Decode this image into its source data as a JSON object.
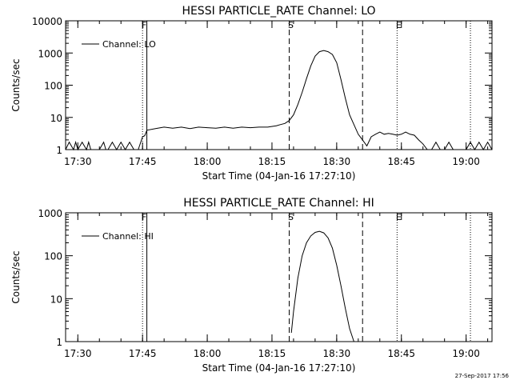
{
  "footer_date": "27-Sep-2017 17:56",
  "chart_data": [
    {
      "type": "line",
      "title": "HESSI PARTICLE_RATE Channel: LO",
      "xlabel": "Start Time (04-Jan-16 17:27:10)",
      "ylabel": "Counts/sec",
      "y_scale": "log",
      "ylim": [
        1,
        10000
      ],
      "xlim": [
        "17:27:10",
        "19:06"
      ],
      "x_ticks": [
        "17:30",
        "17:45",
        "18:00",
        "18:15",
        "18:30",
        "18:45",
        "19:00"
      ],
      "y_ticks": [
        "1",
        "10",
        "100",
        "1000",
        "10000"
      ],
      "legend": {
        "label": "Channel: LO",
        "position": "top-left"
      },
      "markers": [
        {
          "label": "F",
          "time": "17:45",
          "style": "dotted"
        },
        {
          "label": "",
          "time": "17:46",
          "style": "solid"
        },
        {
          "label": "S",
          "time": "18:19",
          "style": "dashed"
        },
        {
          "label": "",
          "time": "18:36",
          "style": "dashed"
        },
        {
          "label": "E",
          "time": "18:44",
          "style": "dotted"
        },
        {
          "label": "",
          "time": "19:01",
          "style": "dotted"
        }
      ],
      "series": [
        {
          "x": [
            "17:27:10",
            "17:28",
            "17:29",
            "17:29:30",
            "17:30",
            "17:31",
            "17:32",
            "17:32:30",
            "17:33",
            "17:34",
            "17:35",
            "17:36",
            "17:36:30",
            "17:37",
            "17:38",
            "17:39",
            "17:40",
            "17:41",
            "17:42",
            "17:43",
            "17:44",
            "17:45",
            "17:45:30",
            "17:46",
            "17:48",
            "17:50",
            "17:52",
            "17:54",
            "17:56",
            "17:58",
            "18:00",
            "18:02",
            "18:04",
            "18:06",
            "18:08",
            "18:10",
            "18:12",
            "18:14",
            "18:16",
            "18:17",
            "18:18",
            "18:19",
            "18:20",
            "18:21",
            "18:22",
            "18:23",
            "18:24",
            "18:25",
            "18:26",
            "18:27",
            "18:28",
            "18:29",
            "18:30",
            "18:31",
            "18:32",
            "18:33",
            "18:34",
            "18:35",
            "18:36",
            "18:37",
            "18:38",
            "18:39",
            "18:40",
            "18:41",
            "18:42",
            "18:43",
            "18:44",
            "18:45",
            "18:46",
            "18:47",
            "18:48",
            "18:49",
            "18:50",
            "18:51",
            "18:52",
            "18:53",
            "18:54",
            "18:55",
            "18:56",
            "18:57",
            "18:58",
            "18:59",
            "19:00",
            "19:01",
            "19:02",
            "19:03",
            "19:04",
            "19:05",
            "19:06"
          ],
          "y": [
            1,
            1.7,
            1,
            1.7,
            1,
            1.7,
            1,
            1.7,
            1,
            1,
            1,
            1.7,
            1,
            1,
            1.7,
            1,
            1.7,
            1,
            1.7,
            1,
            1,
            2.5,
            2.7,
            4,
            4.5,
            5,
            4.6,
            5,
            4.5,
            5,
            4.8,
            4.6,
            5,
            4.6,
            5,
            4.8,
            5,
            5,
            5.5,
            6,
            6.5,
            8,
            12,
            25,
            60,
            160,
            400,
            800,
            1100,
            1200,
            1100,
            900,
            500,
            150,
            40,
            12,
            6,
            3,
            2,
            1.3,
            2.5,
            3,
            3.5,
            3,
            3.2,
            3,
            2.8,
            3,
            3.5,
            3,
            2.8,
            2,
            1.5,
            1,
            1,
            1.7,
            1,
            1,
            1.7,
            1,
            1,
            1,
            1,
            1.7,
            1,
            1.7,
            1,
            1.7,
            1
          ]
        }
      ]
    },
    {
      "type": "line",
      "title": "HESSI PARTICLE_RATE Channel: HI",
      "xlabel": "Start Time (04-Jan-16 17:27:10)",
      "ylabel": "Counts/sec",
      "y_scale": "log",
      "ylim": [
        1,
        1000
      ],
      "xlim": [
        "17:27:10",
        "19:06"
      ],
      "x_ticks": [
        "17:30",
        "17:45",
        "18:00",
        "18:15",
        "18:30",
        "18:45",
        "19:00"
      ],
      "y_ticks": [
        "1",
        "10",
        "100",
        "1000"
      ],
      "legend": {
        "label": "Channel: HI",
        "position": "top-left"
      },
      "markers": [
        {
          "label": "F",
          "time": "17:45",
          "style": "dotted"
        },
        {
          "label": "",
          "time": "17:46",
          "style": "solid"
        },
        {
          "label": "S",
          "time": "18:19",
          "style": "dashed"
        },
        {
          "label": "",
          "time": "18:36",
          "style": "dashed"
        },
        {
          "label": "E",
          "time": "18:44",
          "style": "dotted"
        },
        {
          "label": "",
          "time": "19:01",
          "style": "dotted"
        }
      ],
      "series": [
        {
          "x": [
            "18:19:30",
            "18:20",
            "18:21",
            "18:22",
            "18:23",
            "18:24",
            "18:25",
            "18:26",
            "18:27",
            "18:28",
            "18:29",
            "18:30",
            "18:31",
            "18:32",
            "18:33",
            "18:34"
          ],
          "y": [
            1.6,
            5,
            30,
            100,
            200,
            290,
            350,
            370,
            340,
            260,
            150,
            60,
            20,
            6,
            2,
            1
          ]
        }
      ]
    }
  ]
}
